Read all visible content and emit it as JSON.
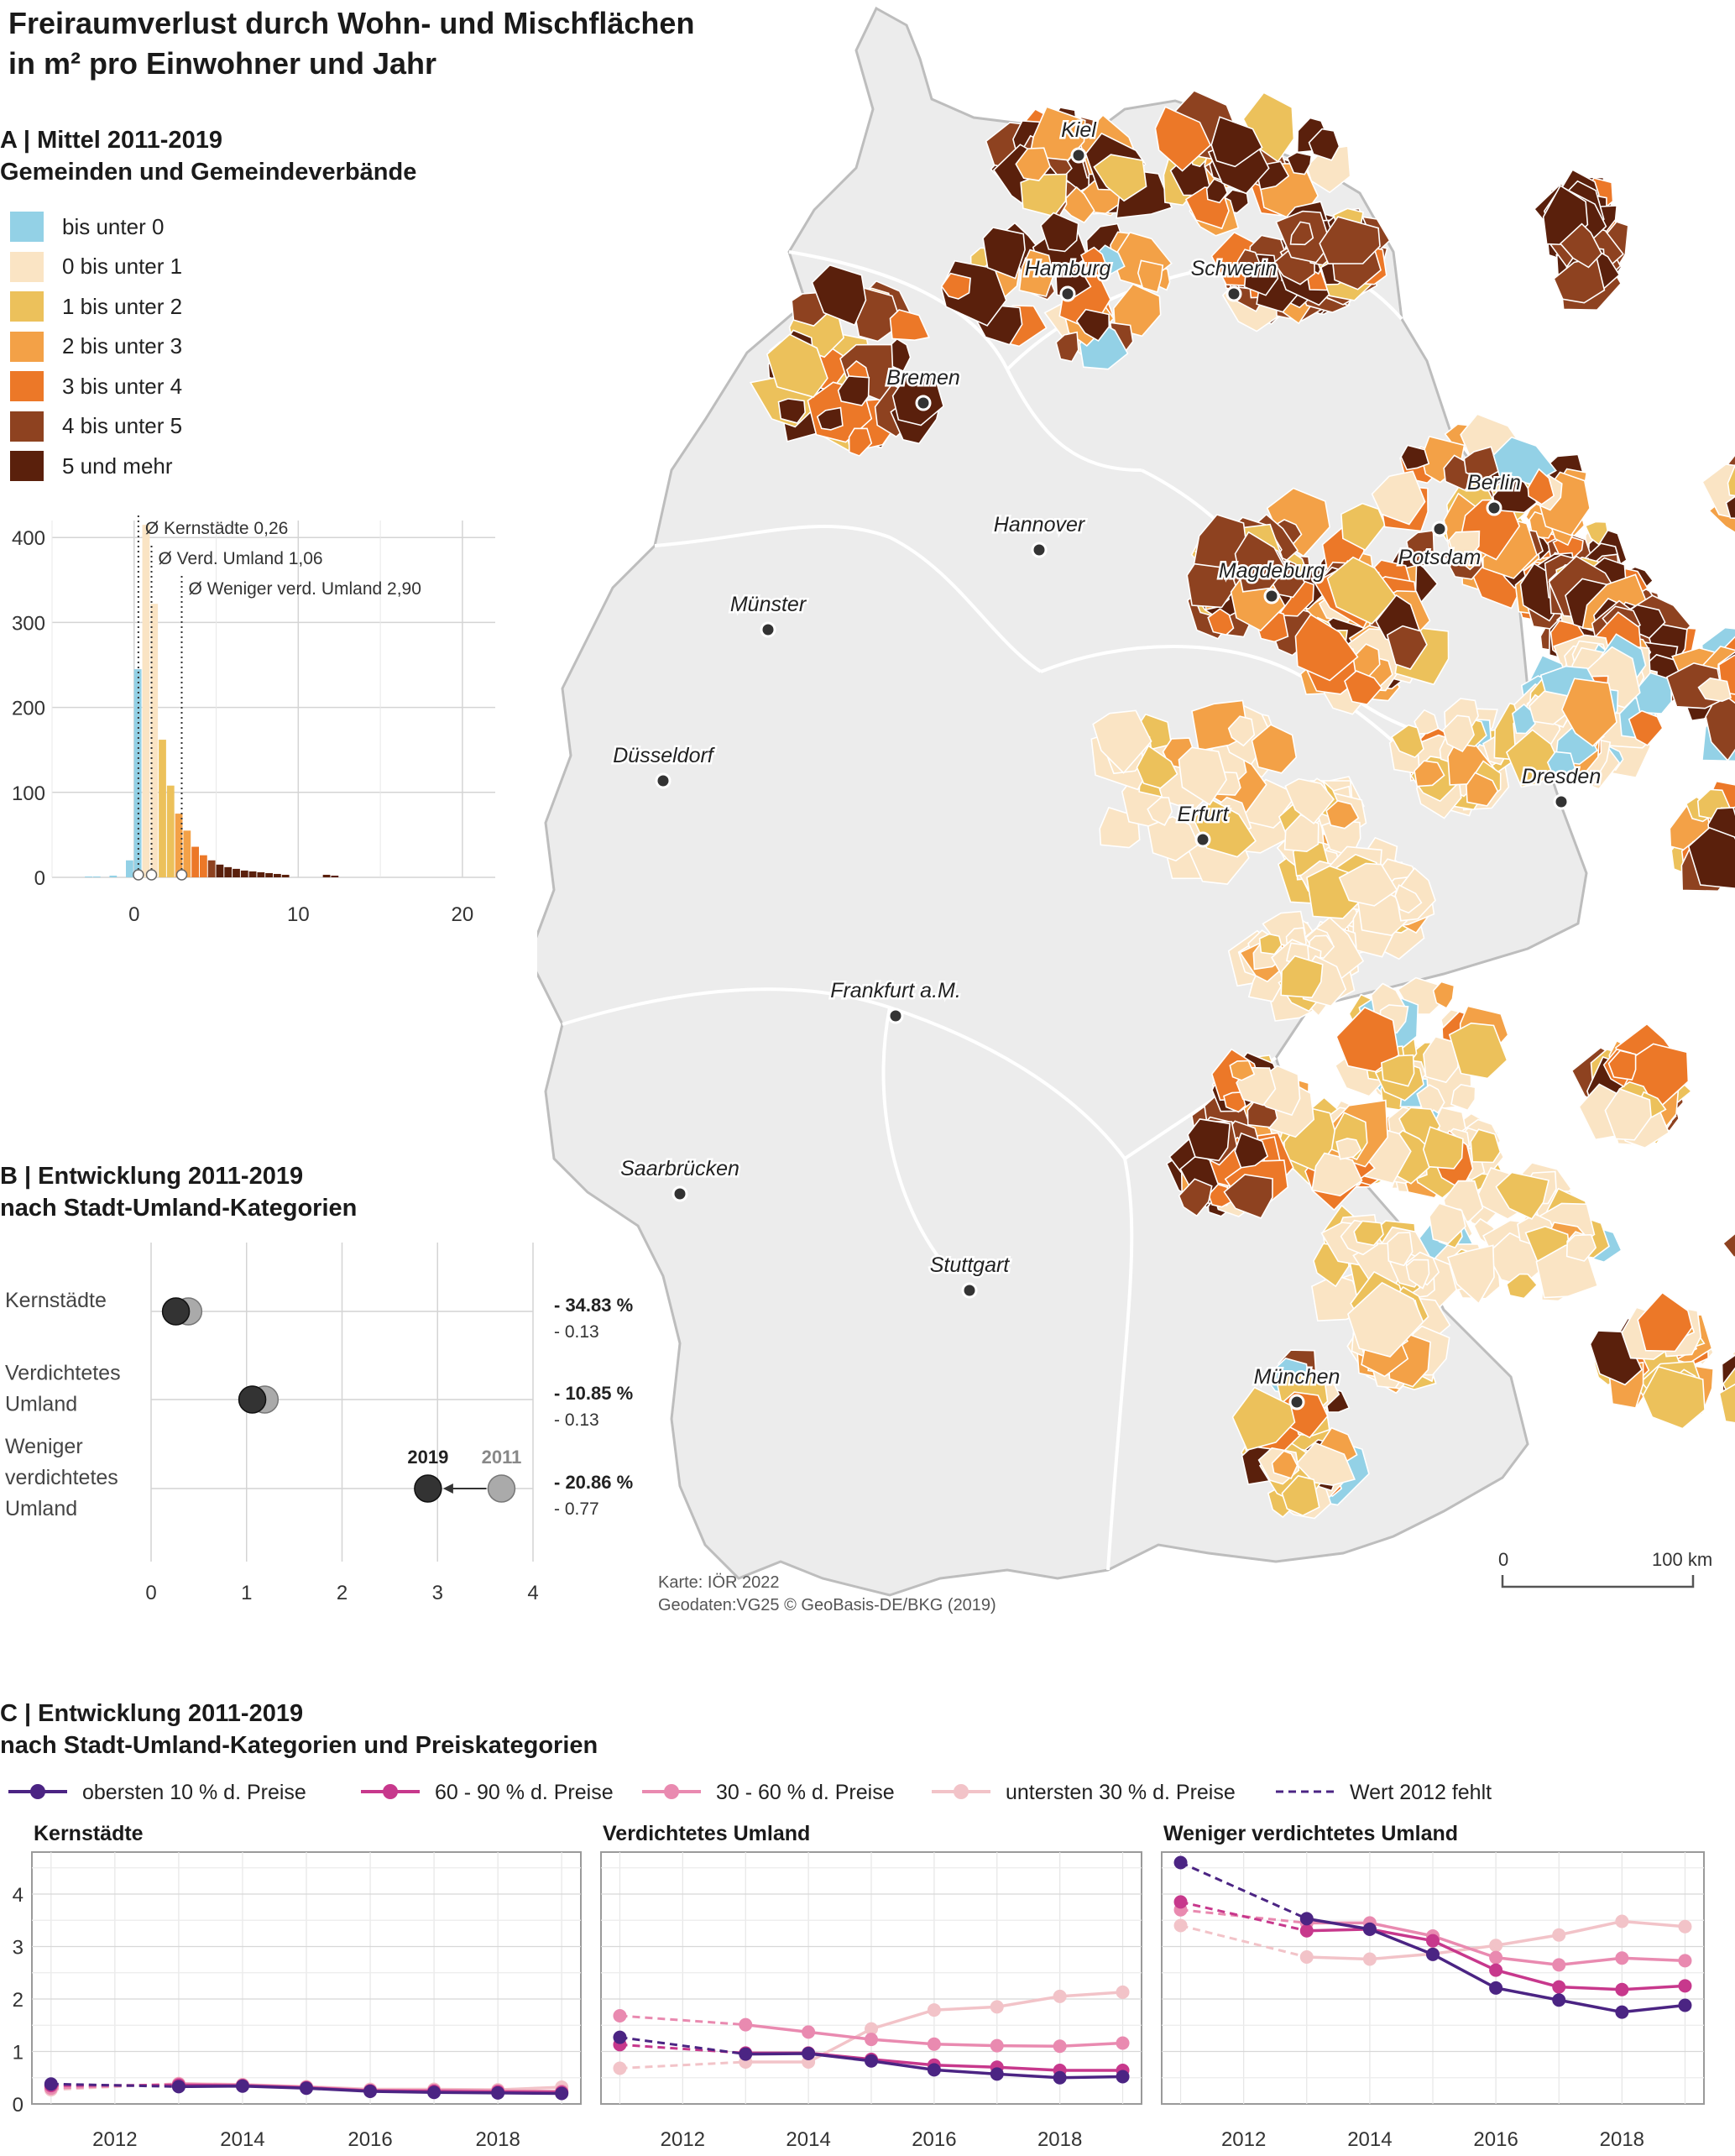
{
  "title": [
    "Freiraumverlust durch Wohn- und Mischflächen",
    "in m² pro Einwohner und Jahr"
  ],
  "sectionA": {
    "heading": [
      "A | Mittel 2011-2019",
      "Gemeinden und Gemeindeverbände"
    ],
    "legend": [
      {
        "label": "bis unter 0",
        "color": "#93d1e6"
      },
      {
        "label": "0 bis unter 1",
        "color": "#fae4c4"
      },
      {
        "label": "1 bis unter 2",
        "color": "#ecc15b"
      },
      {
        "label": "2 bis unter 3",
        "color": "#f3a147"
      },
      {
        "label": "3 bis unter 4",
        "color": "#ec7828"
      },
      {
        "label": "4 bis unter 5",
        "color": "#8e4220"
      },
      {
        "label": "5 und mehr",
        "color": "#5a200c"
      }
    ]
  },
  "sectionB": {
    "heading": [
      "B | Entwicklung 2011-2019",
      "nach Stadt-Umland-Kategorien"
    ],
    "marker_2019": "2019",
    "marker_2011": "2011"
  },
  "sectionC": {
    "heading": [
      "C | Entwicklung 2011-2019",
      "nach Stadt-Umland-Kategorien und Preiskategorien"
    ],
    "legend": [
      {
        "label": "obersten 10 % d. Preise",
        "color": "#4b2483",
        "dashed": false
      },
      {
        "label": "60 - 90 % d. Preise",
        "color": "#c7388c",
        "dashed": false
      },
      {
        "label": "30 - 60 % d. Preise",
        "color": "#e98ab0",
        "dashed": false
      },
      {
        "label": "untersten 30 % d. Preise",
        "color": "#f2c3c8",
        "dashed": false
      },
      {
        "label": "Wert 2012 fehlt",
        "color": "#4b2483",
        "dashed": true
      }
    ]
  },
  "map": {
    "cities": [
      "Kiel",
      "Hamburg",
      "Schwerin",
      "Bremen",
      "Berlin",
      "Potsdam",
      "Hannover",
      "Magdeburg",
      "Münster",
      "Düsseldorf",
      "Erfurt",
      "Dresden",
      "Frankfurt a.M.",
      "Saarbrücken",
      "Stuttgart",
      "München"
    ],
    "scalebar": {
      "start": "0",
      "end": "100 km"
    },
    "credits": [
      "Karte:  IÖR 2022",
      "Geodaten:VG25 © GeoBasis-DE/BKG (2019)"
    ]
  },
  "chart_data": [
    {
      "id": "histogram",
      "type": "bar",
      "x_ticks": [
        0,
        10,
        20
      ],
      "y_ticks": [
        0,
        100,
        200,
        300,
        400
      ],
      "xlim": [
        -5,
        22
      ],
      "ylim": [
        0,
        420
      ],
      "bins": [
        {
          "x": -3.0,
          "v": 1,
          "c": 0
        },
        {
          "x": -2.5,
          "v": 1,
          "c": 0
        },
        {
          "x": -1.5,
          "v": 2,
          "c": 0
        },
        {
          "x": -0.5,
          "v": 20,
          "c": 0
        },
        {
          "x": 0.0,
          "v": 245,
          "c": 0
        },
        {
          "x": 0.5,
          "v": 415,
          "c": 1
        },
        {
          "x": 1.0,
          "v": 322,
          "c": 1
        },
        {
          "x": 1.5,
          "v": 162,
          "c": 2
        },
        {
          "x": 2.0,
          "v": 108,
          "c": 2
        },
        {
          "x": 2.5,
          "v": 75,
          "c": 3
        },
        {
          "x": 3.0,
          "v": 55,
          "c": 3
        },
        {
          "x": 3.5,
          "v": 36,
          "c": 4
        },
        {
          "x": 4.0,
          "v": 26,
          "c": 4
        },
        {
          "x": 4.5,
          "v": 20,
          "c": 5
        },
        {
          "x": 5.0,
          "v": 15,
          "c": 6
        },
        {
          "x": 5.5,
          "v": 12,
          "c": 6
        },
        {
          "x": 6.0,
          "v": 10,
          "c": 6
        },
        {
          "x": 6.5,
          "v": 8,
          "c": 6
        },
        {
          "x": 7.0,
          "v": 7,
          "c": 6
        },
        {
          "x": 7.5,
          "v": 6,
          "c": 6
        },
        {
          "x": 8.0,
          "v": 5,
          "c": 6
        },
        {
          "x": 8.5,
          "v": 4,
          "c": 6
        },
        {
          "x": 9.0,
          "v": 3,
          "c": 6
        },
        {
          "x": 11.5,
          "v": 3,
          "c": 6
        },
        {
          "x": 12.0,
          "v": 2,
          "c": 6
        }
      ],
      "annotations": [
        {
          "label": "Ø Kernstädte 0,26",
          "x": 0.26
        },
        {
          "label": "Ø Verd. Umland 1,06",
          "x": 1.06
        },
        {
          "label": "Ø Weniger verd. Umland 2,90",
          "x": 2.9
        }
      ]
    },
    {
      "id": "dumbbell",
      "type": "scatter",
      "x_ticks": [
        0,
        1,
        2,
        3,
        4
      ],
      "xlim": [
        0,
        4
      ],
      "rows": [
        {
          "label": [
            "Kernstädte"
          ],
          "v2011": 0.39,
          "v2019": 0.26,
          "pct": "- 34.83 %",
          "abs": "- 0.13"
        },
        {
          "label": [
            "Verdichtetes",
            "Umland"
          ],
          "v2011": 1.19,
          "v2019": 1.06,
          "pct": "- 10.85 %",
          "abs": "- 0.13"
        },
        {
          "label": [
            "Weniger",
            "verdichtetes",
            "Umland"
          ],
          "v2011": 3.67,
          "v2019": 2.9,
          "pct": "- 20.86 %",
          "abs": "- 0.77"
        }
      ]
    },
    {
      "id": "lines",
      "type": "line",
      "years": [
        2011,
        2012,
        2013,
        2014,
        2015,
        2016,
        2017,
        2018,
        2019
      ],
      "x_ticks": [
        2012,
        2014,
        2016,
        2018
      ],
      "y_ticks": [
        0,
        1,
        2,
        3,
        4
      ],
      "ylim": [
        0,
        4.8
      ],
      "panels": [
        {
          "title": "Kernstädte",
          "series": [
            {
              "name": "obersten 10 % d. Preise",
              "values": [
                0.38,
                null,
                0.33,
                0.34,
                0.3,
                0.24,
                0.22,
                0.21,
                0.2
              ]
            },
            {
              "name": "60 - 90 % d. Preise",
              "values": [
                0.35,
                null,
                0.36,
                0.35,
                0.31,
                0.25,
                0.24,
                0.23,
                0.22
              ]
            },
            {
              "name": "30 - 60 % d. Preise",
              "values": [
                0.3,
                null,
                0.38,
                0.36,
                0.32,
                0.26,
                0.26,
                0.25,
                0.24
              ]
            },
            {
              "name": "untersten 30 % d. Preise",
              "values": [
                0.27,
                null,
                0.39,
                0.37,
                0.33,
                0.28,
                0.28,
                0.27,
                0.32
              ]
            }
          ]
        },
        {
          "title": "Verdichtetes Umland",
          "series": [
            {
              "name": "obersten 10 % d. Preise",
              "values": [
                1.27,
                null,
                0.95,
                0.96,
                0.82,
                0.65,
                0.57,
                0.5,
                0.52
              ]
            },
            {
              "name": "60 - 90 % d. Preise",
              "values": [
                1.13,
                null,
                0.97,
                0.97,
                0.85,
                0.74,
                0.7,
                0.64,
                0.64
              ]
            },
            {
              "name": "30 - 60 % d. Preise",
              "values": [
                1.68,
                null,
                1.51,
                1.37,
                1.23,
                1.14,
                1.11,
                1.1,
                1.16
              ]
            },
            {
              "name": "untersten 30 % d. Preise",
              "values": [
                0.68,
                null,
                0.8,
                0.8,
                1.43,
                1.79,
                1.85,
                2.05,
                2.13
              ]
            }
          ]
        },
        {
          "title": "Weniger verdichtetes Umland",
          "series": [
            {
              "name": "obersten 10 % d. Preise",
              "values": [
                4.6,
                null,
                3.53,
                3.33,
                2.85,
                2.21,
                1.98,
                1.75,
                1.88
              ]
            },
            {
              "name": "60 - 90 % d. Preise",
              "values": [
                3.85,
                null,
                3.3,
                3.33,
                3.11,
                2.55,
                2.23,
                2.18,
                2.25
              ]
            },
            {
              "name": "30 - 60 % d. Preise",
              "values": [
                3.7,
                null,
                3.45,
                3.45,
                3.2,
                2.79,
                2.65,
                2.78,
                2.73
              ]
            },
            {
              "name": "untersten 30 % d. Preise",
              "values": [
                3.4,
                null,
                2.8,
                2.76,
                2.86,
                3.02,
                3.22,
                3.48,
                3.38
              ]
            }
          ]
        }
      ]
    }
  ]
}
